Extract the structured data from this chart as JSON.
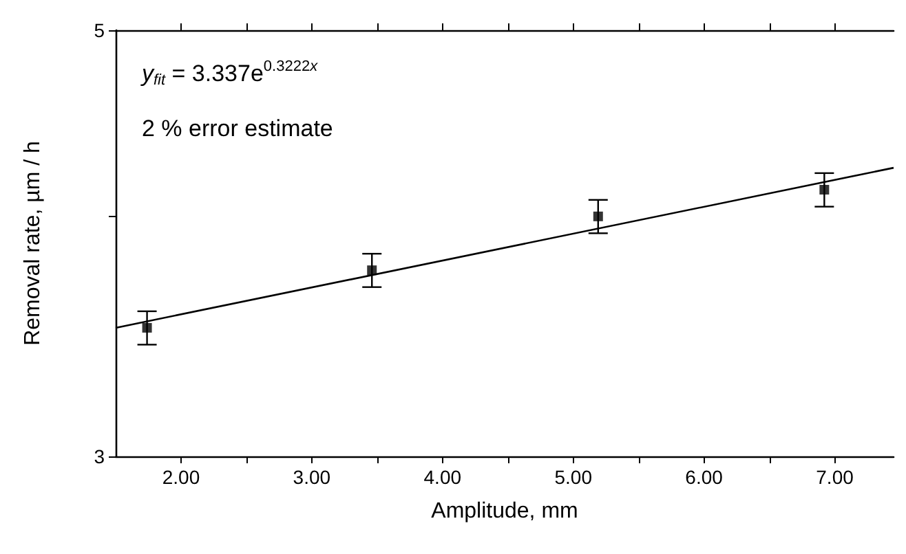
{
  "chart_data": {
    "type": "scatter",
    "xlabel": "Amplitude, mm",
    "ylabel": "Removal rate, µm / h",
    "annotations": [
      "y$_{fit}$ = 3.337e$^{0.3222x}$",
      "2 % error estimate"
    ],
    "log": "y",
    "marker": "square",
    "grid": false,
    "xlim": [
      1.5,
      7.45
    ],
    "ylim": [
      3,
      5
    ],
    "xticks": [
      {
        "value": 2,
        "label": "2.00"
      },
      {
        "value": 2.5,
        "label": null
      },
      {
        "value": 3,
        "label": "3.00"
      },
      {
        "value": 3.5,
        "label": null
      },
      {
        "value": 4,
        "label": "4.00"
      },
      {
        "value": 4.5,
        "label": null
      },
      {
        "value": 5,
        "label": "5.00"
      },
      {
        "value": 5.5,
        "label": null
      },
      {
        "value": 6,
        "label": "6.00"
      },
      {
        "value": 6.5,
        "label": null
      },
      {
        "value": 7,
        "label": "7.00"
      }
    ],
    "yticks": [
      3,
      {
        "value": 4,
        "label": null
      },
      5
    ],
    "series": [
      {
        "color": "#000000",
        "x": [
          1.74,
          3.46,
          5.19,
          6.92
        ],
        "values": [
          3.5,
          3.75,
          4.0,
          4.13
        ],
        "errors": [
          0.07,
          0.075,
          0.08,
          0.083
        ]
      },
      {
        "type": "line",
        "color": "#000000",
        "marker": "none",
        "line_style": "solid",
        "x": [
          1.5,
          7.45
        ],
        "values": [
          3.5,
          4.24
        ]
      }
    ]
  }
}
